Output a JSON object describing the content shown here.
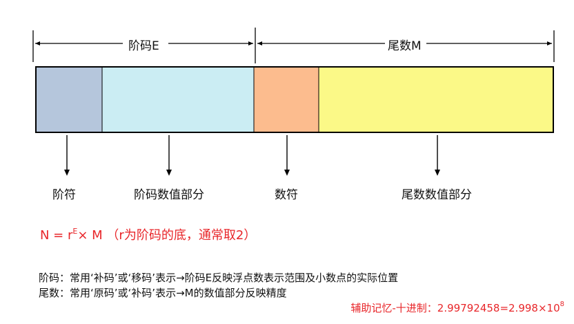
{
  "header": {
    "exponent_label": "阶码E",
    "mantissa_label": "尾数M"
  },
  "segments": [
    {
      "key": "exp-sign",
      "color": "#b5c6dc"
    },
    {
      "key": "exp-value",
      "color": "#cbedf3"
    },
    {
      "key": "mant-sign",
      "color": "#fcbc8e"
    },
    {
      "key": "mant-value",
      "color": "#fbf987"
    }
  ],
  "labels": {
    "exp_sign": "阶符",
    "exp_value": "阶码数值部分",
    "mant_sign": "数符",
    "mant_value": "尾数数值部分"
  },
  "formula": {
    "lhs": "N = r",
    "sup": "E",
    "rhs": "× M",
    "note": "（r为阶码的底，通常取2）"
  },
  "descriptions": [
    "阶码：常用‘补码’或‘移码’表示→阶码E反映浮点数表示范围及小数点的实际位置",
    "尾数：常用‘原码’或‘补码’表示→M的数值部分反映精度"
  ],
  "mnemonic": {
    "text": "辅助记忆-十进制：2.99792458=2.998×10",
    "sup": "8"
  }
}
